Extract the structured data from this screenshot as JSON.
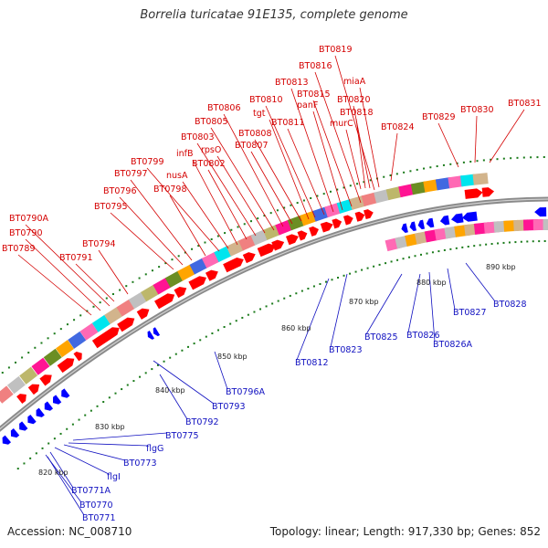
{
  "title": "Borrelia turicatae 91E135, complete genome",
  "footer": {
    "accession": "Accession: NC_008710",
    "summary": "Topology: linear; Length: 917,330 bp; Genes: 852"
  },
  "colors": {
    "forward": "#ff0000",
    "reverse": "#0000ff",
    "label_forward": "#d40000",
    "label_reverse": "#1010c0",
    "backbone": "#888888",
    "tick": "#1a7a1a"
  },
  "scale_labels": [
    "820 kbp",
    "830 kbp",
    "840 kbp",
    "850 kbp",
    "860 kbp",
    "870 kbp",
    "880 kbp",
    "890 kbp"
  ],
  "forward_labels": [
    "BT0789",
    "BT0790",
    "BT0790A",
    "BT0791",
    "BT0794",
    "BT0795",
    "BT0796",
    "BT0797",
    "BT0798",
    "BT0799",
    "nusA",
    "infB",
    "BT0802",
    "BT0803",
    "rpsO",
    "BT0805",
    "BT0806",
    "BT0807",
    "BT0808",
    "tgt",
    "BT0810",
    "BT0811",
    "BT0813",
    "panF",
    "BT0815",
    "BT0816",
    "BT0819",
    "miaA",
    "BT0820",
    "BT0818",
    "murC",
    "BT0824",
    "BT0829",
    "BT0830",
    "BT0831"
  ],
  "reverse_labels": [
    "BT0771",
    "BT0770",
    "BT0771A",
    "flgI",
    "BT0773",
    "flgG",
    "BT0775",
    "BT0792",
    "BT0793",
    "BT0796A",
    "BT0812",
    "BT0823",
    "BT0825",
    "BT0826",
    "BT0826A",
    "BT0827",
    "BT0828"
  ]
}
